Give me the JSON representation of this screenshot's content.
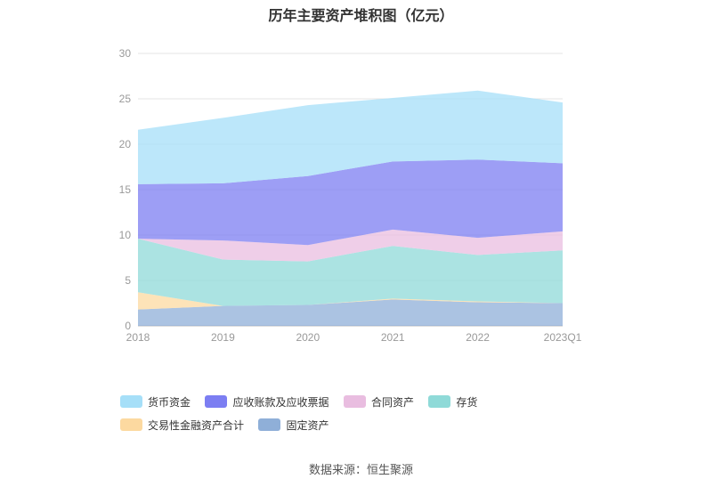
{
  "chart_data": {
    "type": "area",
    "stacked": true,
    "title": "历年主要资产堆积图（亿元）",
    "categories": [
      "2018",
      "2019",
      "2020",
      "2021",
      "2022",
      "2023Q1"
    ],
    "ylim": [
      0,
      30
    ],
    "yticks": [
      "0",
      "5",
      "10",
      "15",
      "20",
      "25",
      "30"
    ],
    "grid": true,
    "legend_position": "bottom",
    "series": [
      {
        "name": "固定资产",
        "color": "#8fafd8",
        "values": [
          1.8,
          2.2,
          2.3,
          2.9,
          2.6,
          2.5
        ]
      },
      {
        "name": "交易性金融资产合计",
        "color": "#fcd9a0",
        "values": [
          1.9,
          0.0,
          0.0,
          0.1,
          0.1,
          0.0
        ]
      },
      {
        "name": "存货",
        "color": "#8fdad8",
        "values": [
          5.9,
          5.1,
          4.8,
          5.8,
          5.1,
          5.8
        ]
      },
      {
        "name": "合同资产",
        "color": "#e9bde0",
        "values": [
          0.0,
          2.1,
          1.8,
          1.8,
          1.9,
          2.1
        ]
      },
      {
        "name": "应收账款及应收票据",
        "color": "#7c7ef2",
        "values": [
          6.0,
          6.3,
          7.6,
          7.5,
          8.6,
          7.5
        ]
      },
      {
        "name": "货币资金",
        "color": "#a6dff8",
        "values": [
          6.0,
          7.2,
          7.8,
          7.0,
          7.6,
          6.7
        ]
      }
    ]
  },
  "legend": [
    {
      "label": "货币资金",
      "color": "#a6dff8"
    },
    {
      "label": "应收账款及应收票据",
      "color": "#7c7ef2"
    },
    {
      "label": "合同资产",
      "color": "#e9bde0"
    },
    {
      "label": "存货",
      "color": "#8fdad8"
    },
    {
      "label": "交易性金融资产合计",
      "color": "#fcd9a0"
    },
    {
      "label": "固定资产",
      "color": "#8fafd8"
    }
  ],
  "source": "数据来源：恒生聚源"
}
